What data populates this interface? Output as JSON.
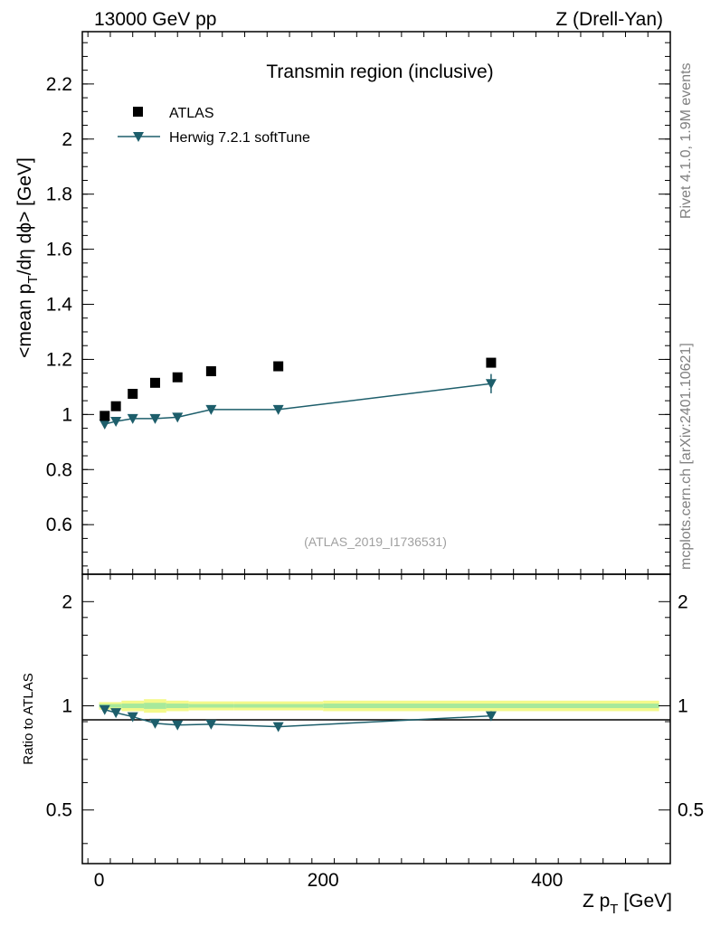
{
  "header": {
    "energy_label": "13000 GeV pp",
    "process_label": "Z (Drell-Yan)"
  },
  "side_labels": {
    "rivet_info": "Rivet 4.1.0,  1.9M events",
    "source_info": "mcplots.cern.ch [arXiv:2401.10621]"
  },
  "chart_data": {
    "type": "scatter",
    "title": "Transmin region (inclusive)",
    "analysis_id": "(ATLAS_2019_I1736531)",
    "xlabel": "Z p_T [GeV]",
    "ylabel": "<mean p_T/dη dϕ> [GeV]",
    "ratio_ylabel": "Ratio to ATLAS",
    "xlim": [
      -15,
      510
    ],
    "ylim": [
      0.42,
      2.39
    ],
    "ratio_ylim": [
      0.35,
      2.4
    ],
    "x_ticks": [
      0,
      200,
      400
    ],
    "y_ticks": [
      0.6,
      0.8,
      1,
      1.2,
      1.4,
      1.6,
      1.8,
      2,
      2.2
    ],
    "ratio_ticks": [
      0.5,
      1,
      2
    ],
    "legend_position": "top-left",
    "series": [
      {
        "name": "ATLAS",
        "marker": "square",
        "color": "#000000",
        "x": [
          5,
          15,
          30,
          50,
          70,
          100,
          160,
          350
        ],
        "values": [
          0.995,
          1.03,
          1.075,
          1.115,
          1.135,
          1.157,
          1.175,
          1.188
        ]
      },
      {
        "name": "Herwig 7.2.1 softTune",
        "marker": "triangle-down",
        "color": "#1d5e6b",
        "x": [
          5,
          15,
          30,
          50,
          70,
          100,
          160,
          350
        ],
        "values": [
          0.965,
          0.975,
          0.985,
          0.985,
          0.99,
          1.018,
          1.018,
          1.112
        ],
        "errors": [
          0.005,
          0.005,
          0.005,
          0.005,
          0.005,
          0.006,
          0.006,
          0.035
        ],
        "ratio": [
          0.975,
          0.955,
          0.93,
          0.89,
          0.88,
          0.885,
          0.87,
          0.935
        ],
        "ratio_errors": [
          0.005,
          0.005,
          0.005,
          0.005,
          0.005,
          0.005,
          0.005,
          0.03
        ]
      }
    ],
    "ratio_band": {
      "x_edges": [
        0,
        10,
        20,
        40,
        60,
        80,
        120,
        200,
        500
      ],
      "inner": [
        0.012,
        0.012,
        0.015,
        0.02,
        0.015,
        0.012,
        0.012,
        0.015
      ],
      "outer": [
        0.025,
        0.025,
        0.035,
        0.045,
        0.035,
        0.03,
        0.03,
        0.035
      ]
    }
  }
}
